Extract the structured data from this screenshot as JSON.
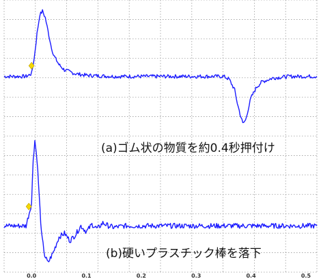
{
  "chart_data": [
    {
      "type": "line",
      "title": "(a)ゴム状の物質を約0.4秒押付け",
      "xlim": [
        -0.05,
        0.52
      ],
      "ylim": [
        -1.0,
        1.3
      ],
      "x_ticks": [
        "0.0",
        "0.1",
        "0.2",
        "0.3",
        "0.4",
        "0.5"
      ],
      "grid": true,
      "line_color": "#1a1aff",
      "marker_color": "#f5d800",
      "series": [
        {
          "x": [
            -0.05,
            -0.03,
            -0.01,
            0.0,
            0.005,
            0.01,
            0.015,
            0.02,
            0.025,
            0.03,
            0.035,
            0.04,
            0.05,
            0.06,
            0.08,
            0.1,
            0.15,
            0.2,
            0.25,
            0.3,
            0.35,
            0.36,
            0.37,
            0.375,
            0.38,
            0.385,
            0.39,
            0.395,
            0.4,
            0.41,
            0.42,
            0.44,
            0.47,
            0.52
          ],
          "y": [
            0.0,
            0.0,
            0.0,
            0.05,
            0.35,
            0.8,
            1.15,
            1.22,
            1.1,
            0.85,
            0.6,
            0.4,
            0.22,
            0.12,
            0.05,
            0.02,
            0.0,
            0.0,
            0.0,
            0.0,
            0.0,
            -0.05,
            -0.25,
            -0.5,
            -0.7,
            -0.88,
            -0.82,
            -0.6,
            -0.4,
            -0.2,
            -0.1,
            -0.03,
            0.0,
            0.0
          ]
        }
      ],
      "marker": {
        "x": 0.0,
        "y": 0.2
      }
    },
    {
      "type": "line",
      "title": "(b)硬いプラスチック棒を落下",
      "xlim": [
        -0.05,
        0.52
      ],
      "ylim": [
        -0.55,
        1.2
      ],
      "x_ticks": [
        "0.0",
        "0.1",
        "0.2",
        "0.3",
        "0.4",
        "0.5"
      ],
      "grid": true,
      "line_color": "#1a1aff",
      "marker_color": "#f5d800",
      "series": [
        {
          "x": [
            -0.05,
            -0.03,
            -0.01,
            0.0,
            0.003,
            0.006,
            0.01,
            0.014,
            0.018,
            0.024,
            0.03,
            0.04,
            0.05,
            0.06,
            0.07,
            0.08,
            0.09,
            0.1,
            0.11,
            0.12,
            0.13,
            0.14,
            0.15,
            0.17,
            0.2,
            0.25,
            0.3,
            0.4,
            0.52
          ],
          "y": [
            0.0,
            0.0,
            0.0,
            0.3,
            0.9,
            1.15,
            0.9,
            0.4,
            -0.1,
            -0.4,
            -0.5,
            -0.35,
            -0.15,
            -0.1,
            -0.2,
            -0.12,
            0.0,
            -0.08,
            0.02,
            -0.04,
            0.04,
            0.0,
            -0.02,
            0.0,
            0.0,
            0.0,
            0.0,
            0.0,
            0.0
          ]
        }
      ],
      "marker": {
        "x": -0.005,
        "y": 0.26
      }
    }
  ]
}
